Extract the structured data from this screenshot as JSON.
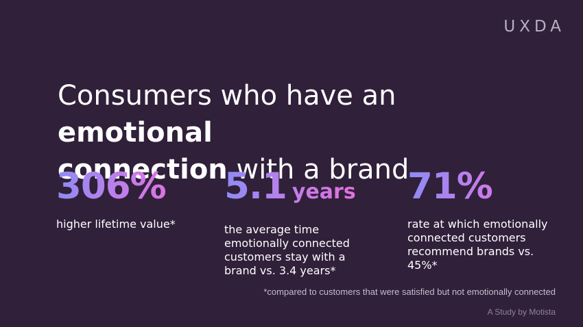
{
  "brand": {
    "logo_text": "UXDA"
  },
  "headline": {
    "part1": "Consumers who have an ",
    "bold1": "emotional",
    "bold2": "connection",
    "part2": " with a brand"
  },
  "stats": [
    {
      "value": "306%",
      "unit": "",
      "description": "higher lifetime value*"
    },
    {
      "value": "5.1",
      "unit": "years",
      "description": "the average time emotionally connected customers stay with a brand vs. 3.4 years*"
    },
    {
      "value": "71%",
      "unit": "",
      "description": "rate at which emotionally connected customers recommend brands vs. 45%*"
    }
  ],
  "footnote": "*compared to customers that were satisfied but not emotionally connected",
  "credit": "A Study by Motista",
  "colors": {
    "background": "#30203a",
    "gradient_start": "#8d8cf4",
    "gradient_end": "#e76ed8",
    "text": "#ffffff"
  }
}
